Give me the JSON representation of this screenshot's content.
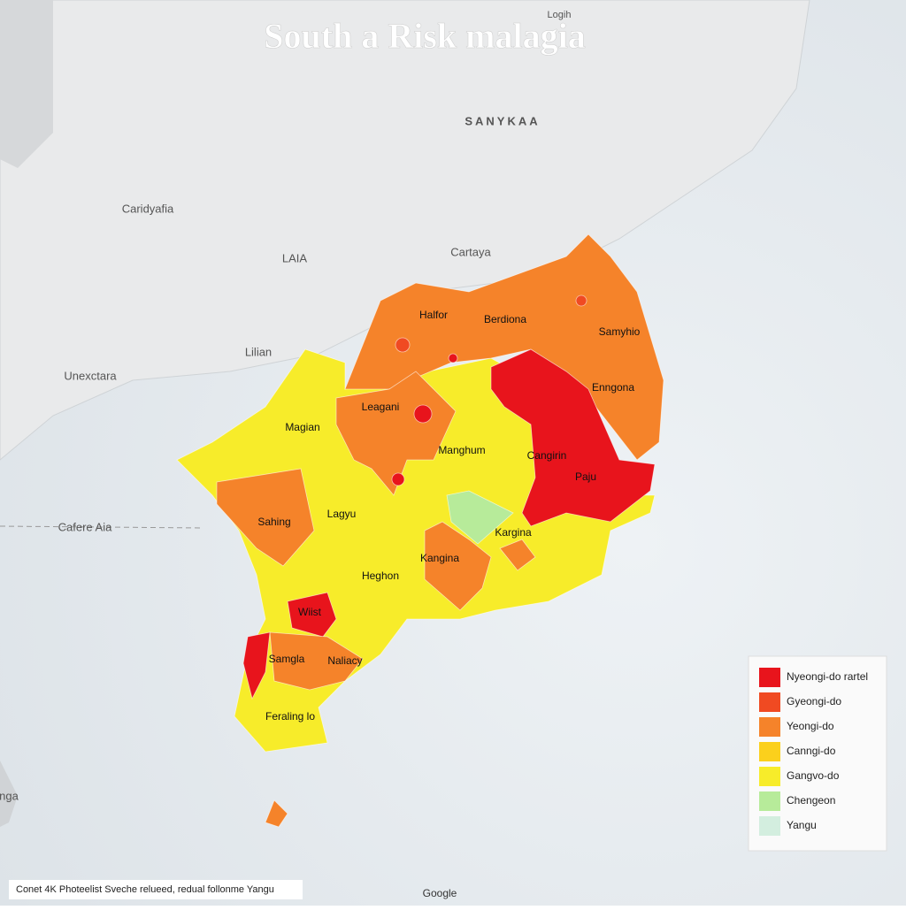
{
  "map": {
    "title": "South a Risk malagia",
    "top_label": "Logih",
    "place_labels": [
      "SANYKAA",
      "Caridyafia",
      "LAIA",
      "Cartaya",
      "Lilian",
      "Unexctara",
      "Cafere Aia",
      "nga"
    ],
    "region_labels": [
      "Halfor",
      "Berdiona",
      "Samyhio",
      "Enngona",
      "Leagani",
      "Magian",
      "Manghum",
      "Cangirin",
      "Paju",
      "Sahing",
      "Lagyu",
      "Kargina",
      "Kangina",
      "Heghon",
      "Wiist",
      "Samgla",
      "Naliacy",
      "Feraling lo"
    ],
    "legend": [
      {
        "label": "Nyeongi-do rartel",
        "color": "#e8141c"
      },
      {
        "label": "Gyeongi-do",
        "color": "#f04a22"
      },
      {
        "label": "Yeongi-do",
        "color": "#f5832a"
      },
      {
        "label": "Canngi-do",
        "color": "#fbd01c"
      },
      {
        "label": "Gangvo-do",
        "color": "#f7ec2a"
      },
      {
        "label": "Chengeon",
        "color": "#b7eb9a"
      },
      {
        "label": "Yangu",
        "color": "#d3eedf"
      }
    ],
    "attribution": "Conet 4K Photeelist Sveche relueed, redual follonme Yangu",
    "provider": "Google"
  }
}
